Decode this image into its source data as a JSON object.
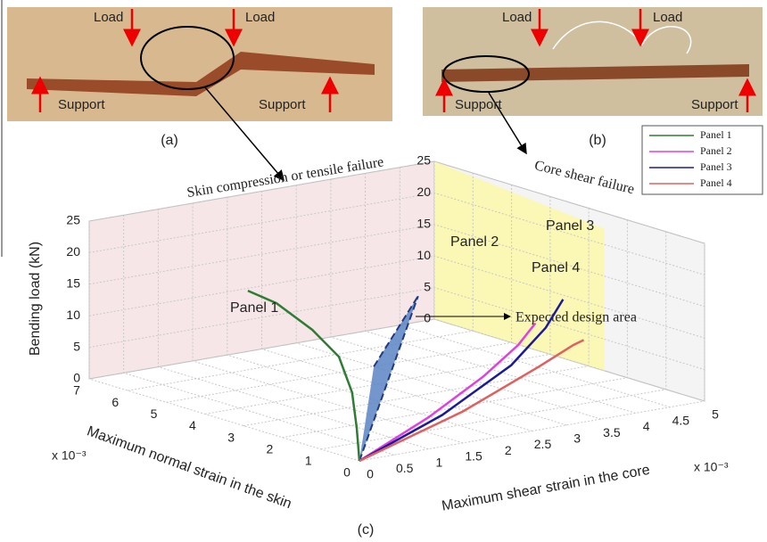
{
  "photos": [
    {
      "label": "(a)",
      "texts": [
        "Load",
        "Load",
        "Support",
        "Support"
      ]
    },
    {
      "label": "(b)",
      "texts": [
        "Load",
        "Load",
        "Support",
        "Support"
      ]
    }
  ],
  "caption": "(c)",
  "chart_data": {
    "type": "line3d",
    "annotations": [
      "Skin compression or tensile failure",
      "Core shear failure",
      "Expected design area"
    ],
    "ylabel": "Bending load (kN)",
    "xlabel": "Maximum normal strain in the skin",
    "x2label": "Maximum shear strain in the core",
    "xmultiplier": "x 10⁻³",
    "x2multiplier": "x 10⁻³",
    "ylim": [
      0,
      25
    ],
    "yticks": [
      0,
      5,
      10,
      15,
      20,
      25
    ],
    "xlim": [
      0,
      7
    ],
    "xticks": [
      0,
      1,
      2,
      3,
      4,
      5,
      6,
      7
    ],
    "x2lim": [
      0,
      5
    ],
    "x2ticks": [
      0,
      0.5,
      1,
      1.5,
      2,
      2.5,
      3,
      3.5,
      4,
      4.5,
      5
    ],
    "grid": true,
    "legend": "upper right",
    "series": [
      {
        "name": "Panel 1",
        "color": "#2e7d32",
        "x": [
          0,
          0.07,
          0.19,
          0.53,
          1.22,
          2.15,
          2.89
        ],
        "values": [
          0,
          5.1,
          10.5,
          15.5,
          18.5,
          21,
          21.6
        ]
      },
      {
        "name": "Panel 2",
        "color": "#e040e0",
        "axis": "x2",
        "x": [
          0,
          1,
          1.8,
          2.3,
          2.55
        ],
        "values": [
          0,
          5,
          10,
          14,
          17
        ]
      },
      {
        "name": "Panel 3",
        "color": "#1a1a9a",
        "axis": "x2",
        "x": [
          0,
          1.2,
          2.2,
          2.7,
          2.95
        ],
        "values": [
          0,
          5,
          11,
          16,
          20
        ]
      },
      {
        "name": "Panel 4",
        "color": "#e06060",
        "axis": "x2",
        "x": [
          0,
          1.5,
          2.6,
          3.1,
          3.25
        ],
        "values": [
          0,
          5,
          10,
          12.5,
          13
        ]
      }
    ]
  }
}
